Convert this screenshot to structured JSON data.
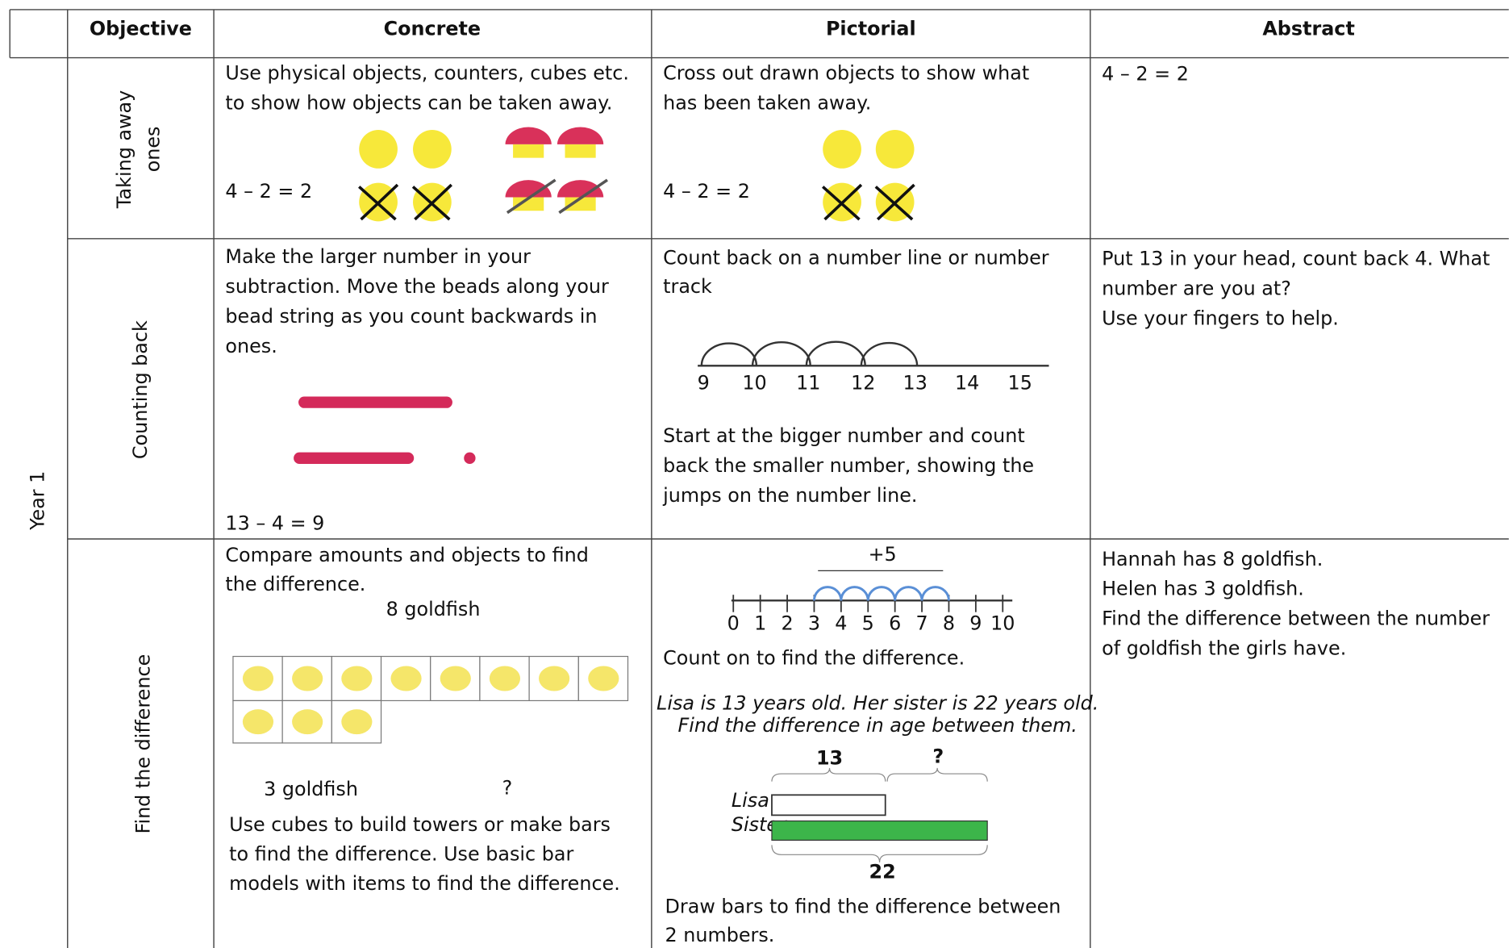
{
  "header": {
    "columns": [
      "Objective",
      "Concrete",
      "Pictorial",
      "Abstract"
    ]
  },
  "year": "Year 1",
  "rows": [
    {
      "objective": [
        "Taking away",
        "ones"
      ],
      "concrete": {
        "text": [
          "Use physical objects, counters, cubes etc.",
          "to show how objects can be taken away."
        ],
        "equation": "4 – 2 = 2"
      },
      "pictorial": {
        "text": [
          "Cross out drawn objects to show what",
          "has been taken away."
        ],
        "equation": "4 – 2 = 2"
      },
      "abstract": [
        "4 – 2 = 2"
      ]
    },
    {
      "objective": [
        "Counting back"
      ],
      "concrete": {
        "text": [
          "Make the larger number in your",
          "subtraction. Move the beads along your",
          "bead string as you count backwards in",
          "ones."
        ],
        "equation": "13 – 4 = 9"
      },
      "pictorial": {
        "text": [
          "Count back on a number line or number",
          "track"
        ],
        "number_line": [
          "9",
          "10",
          "11",
          "12",
          "13",
          "14",
          "15"
        ],
        "text2": [
          "Start at the bigger number and count",
          "back the smaller number, showing the",
          "jumps on the number line."
        ]
      },
      "abstract": [
        "Put 13 in your head, count back 4. What",
        "number are you at?",
        "Use your fingers to help."
      ]
    },
    {
      "objective": [
        "Find the difference"
      ],
      "concrete": {
        "text": [
          "Compare amounts and objects to find",
          "the difference."
        ],
        "label_top": "8 goldfish",
        "label_bottom": "3 goldfish",
        "label_question": "?",
        "text2": [
          "Use cubes to build towers or make bars",
          "to find the difference. Use basic bar",
          "models with items to find the difference."
        ]
      },
      "pictorial": {
        "jump_label": "+5",
        "number_line": [
          "0",
          "1",
          "2",
          "3",
          "4",
          "5",
          "6",
          "7",
          "8",
          "9",
          "10"
        ],
        "text": [
          "Count on to find the difference."
        ],
        "problem": [
          "Lisa is 13 years old. Her sister is 22 years old.",
          "Find the difference in age between them."
        ],
        "bar_labels": [
          "Lisa",
          "Sister"
        ],
        "top_labels": [
          "13",
          "?"
        ],
        "total": "22",
        "text2": [
          "Draw bars to find the difference between",
          "2 numbers."
        ]
      },
      "abstract": [
        "Hannah has 8 goldfish.",
        "Helen has 3 goldfish.",
        "Find the difference between the number",
        "of goldfish the girls have."
      ]
    }
  ]
}
